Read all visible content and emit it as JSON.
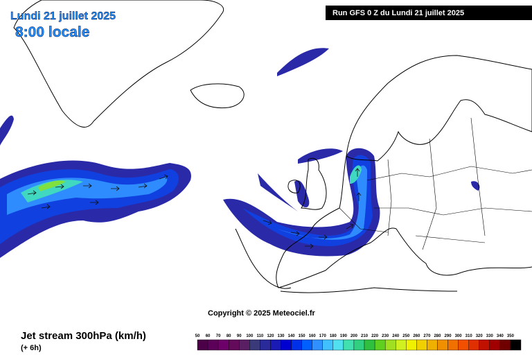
{
  "header": {
    "date": "Lundi 21 juillet 2025",
    "time": "8:00 locale",
    "run": "Run GFS 0 Z du Lundi 21 juillet 2025"
  },
  "footer": {
    "copyright": "Copyright © 2025 Meteociel.fr",
    "title": "Jet stream 300hPa (km/h)",
    "lead": "(+ 6h)"
  },
  "colorbar": [
    {
      "value": 50,
      "color": "#4b0047"
    },
    {
      "value": 60,
      "color": "#5c0059"
    },
    {
      "value": 70,
      "color": "#6e006a"
    },
    {
      "value": 80,
      "color": "#640a5a"
    },
    {
      "value": 90,
      "color": "#5a1e63"
    },
    {
      "value": 100,
      "color": "#3a3a7a"
    },
    {
      "value": 110,
      "color": "#2a2a9a"
    },
    {
      "value": 120,
      "color": "#1a1ab4"
    },
    {
      "value": 130,
      "color": "#0000d0"
    },
    {
      "value": 140,
      "color": "#0030e8"
    },
    {
      "value": 150,
      "color": "#0060ff"
    },
    {
      "value": 160,
      "color": "#3090ff"
    },
    {
      "value": 170,
      "color": "#40c0ff"
    },
    {
      "value": 180,
      "color": "#50e0f0"
    },
    {
      "value": 190,
      "color": "#40e0b0"
    },
    {
      "value": 200,
      "color": "#30d080"
    },
    {
      "value": 210,
      "color": "#30c040"
    },
    {
      "value": 220,
      "color": "#60d020"
    },
    {
      "value": 230,
      "color": "#a0e020"
    },
    {
      "value": 240,
      "color": "#d0f020"
    },
    {
      "value": 250,
      "color": "#f0f000"
    },
    {
      "value": 260,
      "color": "#f0d000"
    },
    {
      "value": 270,
      "color": "#f0b000"
    },
    {
      "value": 280,
      "color": "#f09000"
    },
    {
      "value": 290,
      "color": "#f07000"
    },
    {
      "value": 300,
      "color": "#f05000"
    },
    {
      "value": 310,
      "color": "#e03000"
    },
    {
      "value": 320,
      "color": "#c01000"
    },
    {
      "value": 330,
      "color": "#a00000"
    },
    {
      "value": 340,
      "color": "#700000"
    },
    {
      "value": 350,
      "color": "#000000"
    }
  ]
}
